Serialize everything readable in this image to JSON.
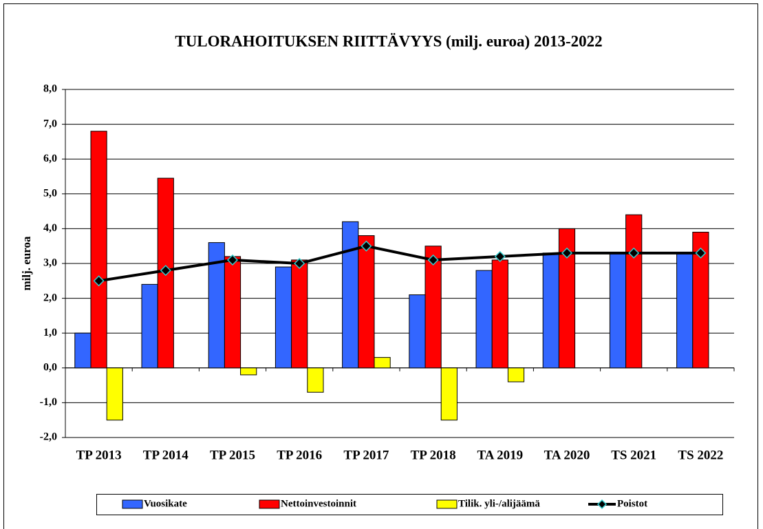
{
  "chart_data": {
    "type": "bar",
    "title": "TULORAHOITUKSEN RIITTÄVYYS (milj. euroa) 2013-2022",
    "y_label": "milj. euroa",
    "categories": [
      "TP 2013",
      "TP 2014",
      "TP 2015",
      "TP 2016",
      "TP 2017",
      "TP 2018",
      "TA 2019",
      "TA 2020",
      "TS 2021",
      "TS 2022"
    ],
    "series": [
      {
        "name": "Vuosikate",
        "color": "#3366ff",
        "type": "bar",
        "values": [
          1.0,
          2.4,
          3.6,
          2.9,
          4.2,
          2.1,
          2.8,
          3.3,
          3.3,
          3.3
        ]
      },
      {
        "name": "Nettoinvestoinnit",
        "color": "#ff0000",
        "type": "bar",
        "values": [
          6.8,
          5.45,
          3.2,
          3.1,
          3.8,
          3.5,
          3.1,
          4.0,
          4.4,
          3.9
        ]
      },
      {
        "name": "Tilik. yli-/alijäämä",
        "color": "#ffff00",
        "type": "bar",
        "values": [
          -1.5,
          0,
          -0.2,
          -0.7,
          0.3,
          -1.5,
          -0.4,
          0,
          0,
          0
        ]
      },
      {
        "name": "Poistot",
        "color": "#000000",
        "marker_color": "#33cccc",
        "type": "line",
        "values": [
          2.5,
          2.8,
          3.1,
          3.0,
          3.5,
          3.1,
          3.2,
          3.3,
          3.3,
          3.3
        ]
      }
    ],
    "ylim": [
      -2,
      8
    ],
    "yticks": [
      {
        "value": -2,
        "label": "-2,0"
      },
      {
        "value": -1,
        "label": "-1,0"
      },
      {
        "value": 0,
        "label": "0,0"
      },
      {
        "value": 1,
        "label": "1,0"
      },
      {
        "value": 2,
        "label": "2,0"
      },
      {
        "value": 3,
        "label": "3,0"
      },
      {
        "value": 4,
        "label": "4,0"
      },
      {
        "value": 5,
        "label": "5,0"
      },
      {
        "value": 6,
        "label": "6,0"
      },
      {
        "value": 7,
        "label": "7,0"
      },
      {
        "value": 8,
        "label": "8,0"
      }
    ],
    "grid": true,
    "legend": "bottom"
  }
}
